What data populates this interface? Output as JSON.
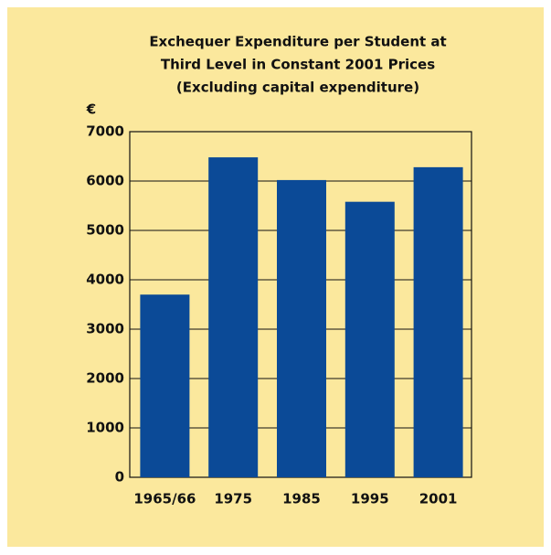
{
  "chart_data": {
    "type": "bar",
    "title": [
      "Exchequer Expenditure per Student at",
      "Third Level in Constant 2001 Prices"
    ],
    "subtitle": "(Excluding capital expenditure)",
    "y_label": "€",
    "categories": [
      "1965/66",
      "1975",
      "1985",
      "1995",
      "2001"
    ],
    "values": [
      3700,
      6480,
      6020,
      5580,
      6280
    ],
    "color": "#0b4a97",
    "ylim": [
      0,
      7000
    ],
    "yticks": [
      0,
      1000,
      2000,
      3000,
      4000,
      5000,
      6000,
      7000
    ],
    "grid": true
  }
}
